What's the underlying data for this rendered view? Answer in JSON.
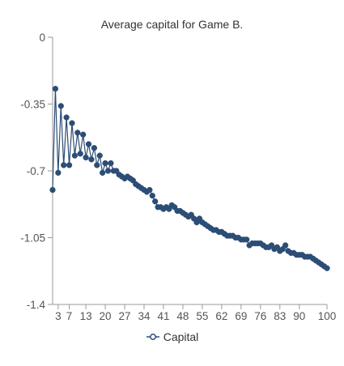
{
  "chart_data": {
    "type": "line",
    "title": "Average capital for Game B.",
    "xlabel": "",
    "ylabel": "",
    "x_ticks": [
      3,
      7,
      13,
      20,
      27,
      34,
      41,
      48,
      55,
      62,
      69,
      76,
      83,
      90,
      100
    ],
    "y_ticks": [
      0,
      -0.35,
      -0.7,
      -1.05,
      -1.4
    ],
    "y_tick_labels": [
      "0",
      "-0.35",
      "-0.7",
      "-1.05",
      "-1.4"
    ],
    "xlim": [
      1,
      100
    ],
    "ylim": [
      -1.4,
      0
    ],
    "grid": false,
    "legend_position": "bottom",
    "series": [
      {
        "name": "Capital",
        "color": "#2c4d75",
        "x": [
          1,
          2,
          3,
          4,
          5,
          6,
          7,
          8,
          9,
          10,
          11,
          12,
          13,
          14,
          15,
          16,
          17,
          18,
          19,
          20,
          21,
          22,
          23,
          24,
          25,
          26,
          27,
          28,
          29,
          30,
          31,
          32,
          33,
          34,
          35,
          36,
          37,
          38,
          39,
          40,
          41,
          42,
          43,
          44,
          45,
          46,
          47,
          48,
          49,
          50,
          51,
          52,
          53,
          54,
          55,
          56,
          57,
          58,
          59,
          60,
          61,
          62,
          63,
          64,
          65,
          66,
          67,
          68,
          69,
          70,
          71,
          72,
          73,
          74,
          75,
          76,
          77,
          78,
          79,
          80,
          81,
          82,
          83,
          84,
          85,
          86,
          87,
          88,
          89,
          90,
          91,
          92,
          93,
          94,
          95,
          96,
          97,
          98,
          99,
          100
        ],
        "values": [
          -0.8,
          -0.27,
          -0.71,
          -0.36,
          -0.67,
          -0.42,
          -0.67,
          -0.45,
          -0.62,
          -0.5,
          -0.61,
          -0.51,
          -0.63,
          -0.56,
          -0.64,
          -0.58,
          -0.67,
          -0.62,
          -0.71,
          -0.66,
          -0.7,
          -0.66,
          -0.7,
          -0.7,
          -0.72,
          -0.73,
          -0.74,
          -0.73,
          -0.74,
          -0.75,
          -0.77,
          -0.78,
          -0.79,
          -0.8,
          -0.81,
          -0.8,
          -0.83,
          -0.86,
          -0.89,
          -0.89,
          -0.9,
          -0.89,
          -0.9,
          -0.88,
          -0.89,
          -0.91,
          -0.91,
          -0.92,
          -0.93,
          -0.94,
          -0.93,
          -0.95,
          -0.97,
          -0.95,
          -0.97,
          -0.98,
          -0.99,
          -1.0,
          -1.01,
          -1.01,
          -1.02,
          -1.02,
          -1.03,
          -1.04,
          -1.04,
          -1.04,
          -1.05,
          -1.05,
          -1.06,
          -1.06,
          -1.06,
          -1.09,
          -1.08,
          -1.08,
          -1.08,
          -1.08,
          -1.09,
          -1.1,
          -1.1,
          -1.09,
          -1.11,
          -1.1,
          -1.12,
          -1.11,
          -1.09,
          -1.12,
          -1.13,
          -1.13,
          -1.14,
          -1.14,
          -1.14,
          -1.15,
          -1.15,
          -1.15,
          -1.16,
          -1.17,
          -1.18,
          -1.19,
          -1.2,
          -1.21
        ]
      }
    ]
  }
}
